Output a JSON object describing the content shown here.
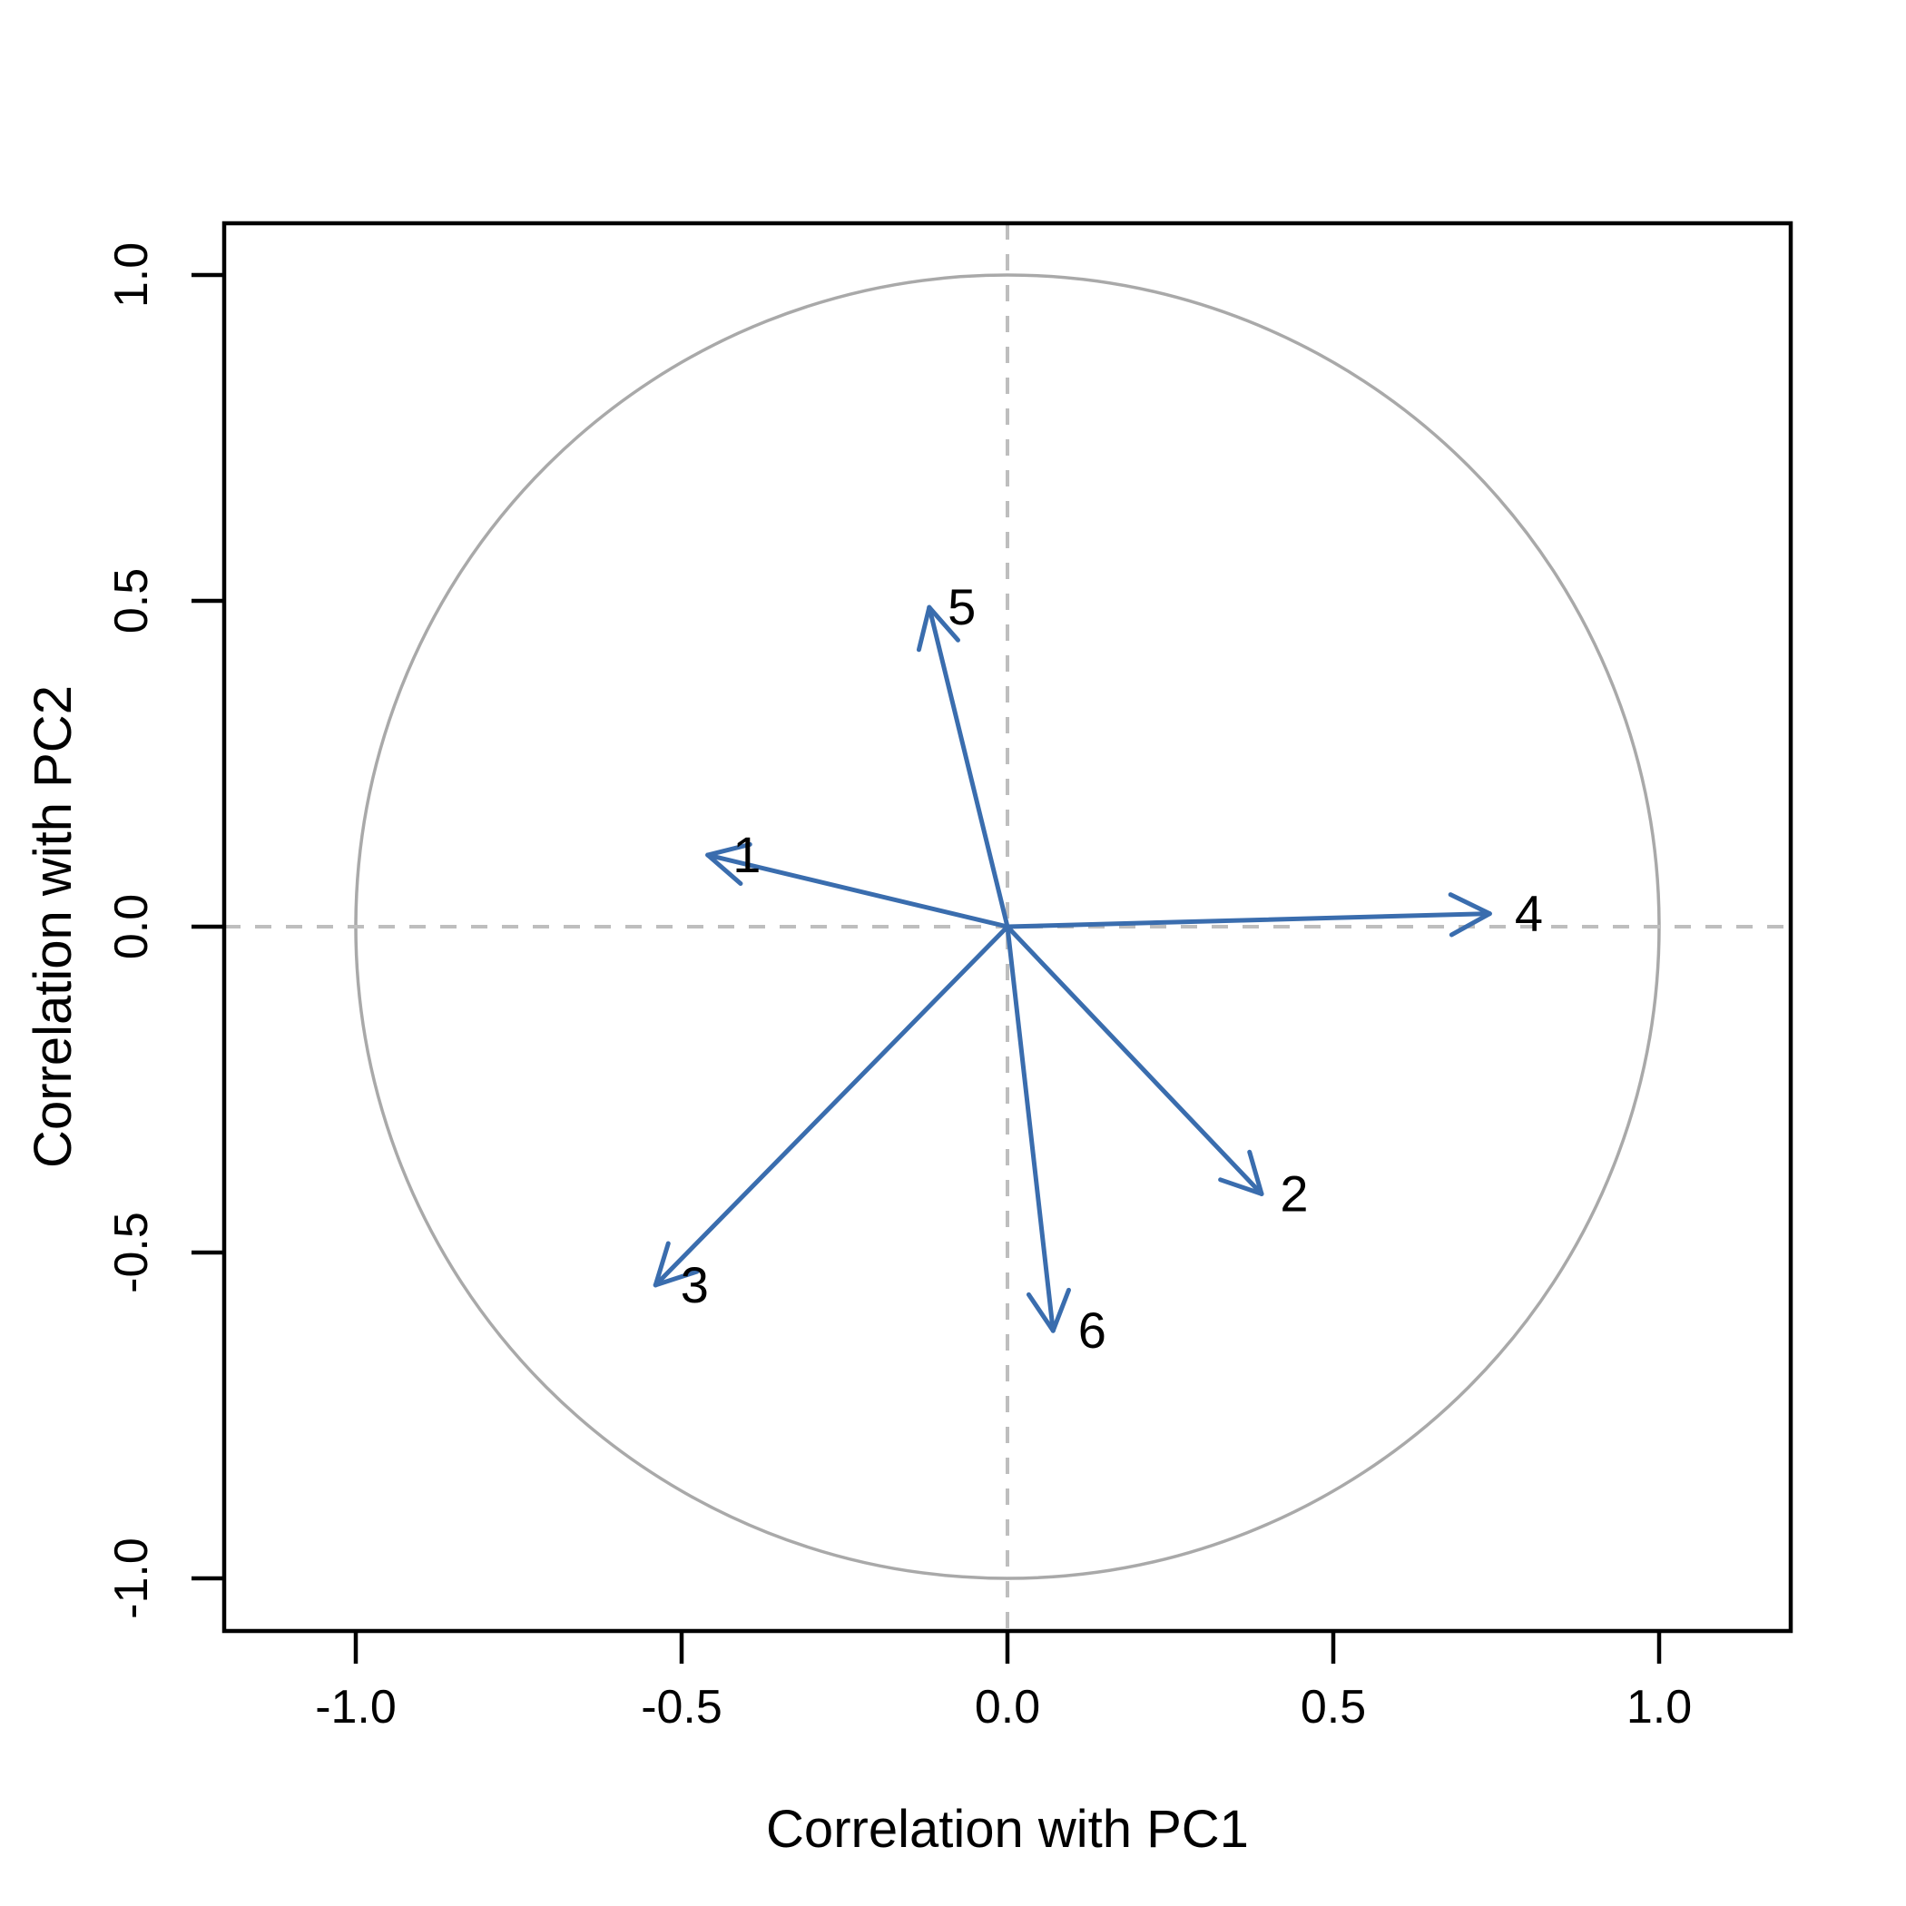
{
  "figure": {
    "background_color": "#FFFFFF",
    "description": "PCA correlation circle plot with six variable arrows"
  },
  "chart_data": {
    "type": "scatter",
    "subtype": "pca-correlation-circle-vectors",
    "title": "",
    "xlabel": "Correlation with PC1",
    "ylabel": "Correlation with PC2",
    "xlim": [
      -1.2,
      1.2
    ],
    "ylim": [
      -1.08,
      1.08
    ],
    "xticks": [
      -1.0,
      -0.5,
      0.0,
      0.5,
      1.0
    ],
    "yticks": [
      -1.0,
      -0.5,
      0.0,
      0.5,
      1.0
    ],
    "xtick_labels": [
      "-1.0",
      "-0.5",
      "0.0",
      "0.5",
      "1.0"
    ],
    "ytick_labels": [
      "-1.0",
      "-0.5",
      "0.0",
      "0.5",
      "1.0"
    ],
    "grid": false,
    "unit_circle": {
      "center_x": 0,
      "center_y": 0,
      "radius": 1.0
    },
    "reference_lines": [
      {
        "axis": "y",
        "value": 0,
        "style": "dashed"
      },
      {
        "axis": "x",
        "value": 0,
        "style": "dashed"
      }
    ],
    "arrows": [
      {
        "label": "1",
        "x": -0.46,
        "y": 0.11,
        "label_x": -0.4,
        "label_y": 0.11
      },
      {
        "label": "2",
        "x": 0.39,
        "y": -0.41,
        "label_x": 0.44,
        "label_y": -0.41
      },
      {
        "label": "3",
        "x": -0.54,
        "y": -0.55,
        "label_x": -0.48,
        "label_y": -0.55
      },
      {
        "label": "4",
        "x": 0.74,
        "y": 0.02,
        "label_x": 0.8,
        "label_y": 0.02
      },
      {
        "label": "5",
        "x": -0.12,
        "y": 0.49,
        "label_x": -0.07,
        "label_y": 0.49
      },
      {
        "label": "6",
        "x": 0.07,
        "y": -0.62,
        "label_x": 0.13,
        "label_y": -0.62
      }
    ],
    "colors": {
      "arrow": "#3A6DAE",
      "circle": "#A9A9A9",
      "dashed_reference": "#BEBEBE",
      "axis": "#000000",
      "text": "#000000"
    },
    "legend": null
  }
}
